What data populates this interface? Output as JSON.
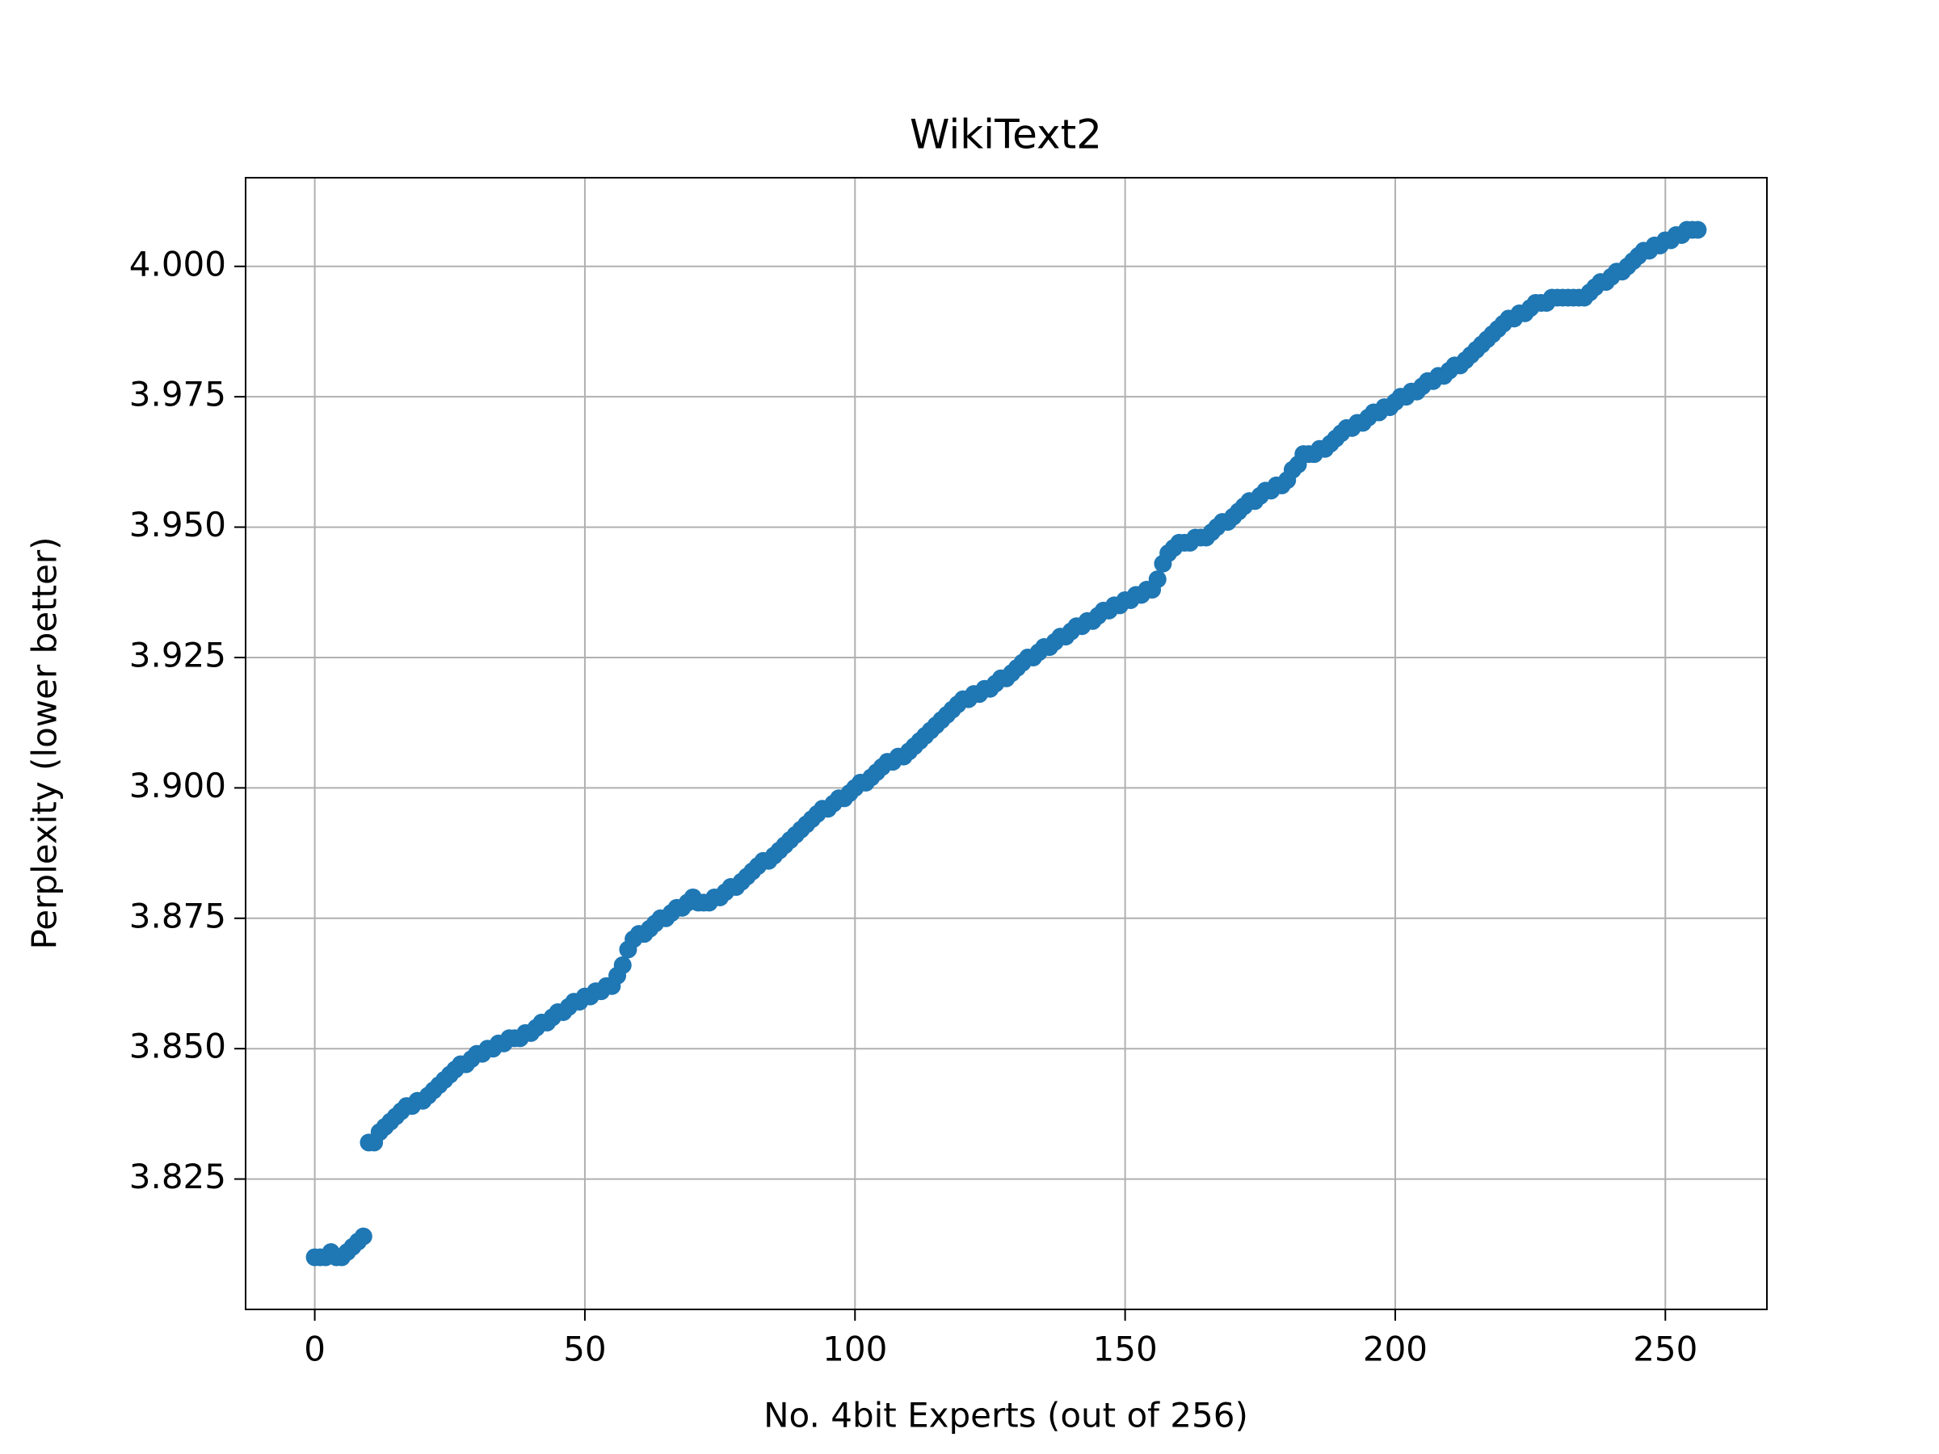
{
  "chart_data": {
    "type": "scatter",
    "title": "WikiText2",
    "x_label": "No. 4bit Experts (out of 256)",
    "y_label": "Perplexity (lower better)",
    "color": "#1f77b4",
    "grid": true,
    "xlim": [
      -12.8,
      268.8
    ],
    "ylim": [
      3.8,
      4.017
    ],
    "xticks": [
      0,
      50,
      100,
      150,
      200,
      250
    ],
    "yticks": [
      3.825,
      {
        "value": 3.85,
        "label": "3.850"
      },
      3.875,
      {
        "value": 3.9,
        "label": "3.900"
      },
      3.925,
      {
        "value": 3.95,
        "label": "3.950"
      },
      3.975,
      {
        "value": 4,
        "label": "4.000"
      }
    ],
    "x": [
      0,
      1,
      2,
      3,
      4,
      5,
      6,
      7,
      8,
      9,
      10,
      11,
      12,
      13,
      14,
      15,
      16,
      17,
      18,
      19,
      20,
      21,
      22,
      23,
      24,
      25,
      26,
      27,
      28,
      29,
      30,
      31,
      32,
      33,
      34,
      35,
      36,
      37,
      38,
      39,
      40,
      41,
      42,
      43,
      44,
      45,
      46,
      47,
      48,
      49,
      50,
      51,
      52,
      53,
      54,
      55,
      56,
      57,
      58,
      59,
      60,
      61,
      62,
      63,
      64,
      65,
      66,
      67,
      68,
      69,
      70,
      71,
      72,
      73,
      74,
      75,
      76,
      77,
      78,
      79,
      80,
      81,
      82,
      83,
      84,
      85,
      86,
      87,
      88,
      89,
      90,
      91,
      92,
      93,
      94,
      95,
      96,
      97,
      98,
      99,
      100,
      101,
      102,
      103,
      104,
      105,
      106,
      107,
      108,
      109,
      110,
      111,
      112,
      113,
      114,
      115,
      116,
      117,
      118,
      119,
      120,
      121,
      122,
      123,
      124,
      125,
      126,
      127,
      128,
      129,
      130,
      131,
      132,
      133,
      134,
      135,
      136,
      137,
      138,
      139,
      140,
      141,
      142,
      143,
      144,
      145,
      146,
      147,
      148,
      149,
      150,
      151,
      152,
      153,
      154,
      155,
      156,
      157,
      158,
      159,
      160,
      161,
      162,
      163,
      164,
      165,
      166,
      167,
      168,
      169,
      170,
      171,
      172,
      173,
      174,
      175,
      176,
      177,
      178,
      179,
      180,
      181,
      182,
      183,
      184,
      185,
      186,
      187,
      188,
      189,
      190,
      191,
      192,
      193,
      194,
      195,
      196,
      197,
      198,
      199,
      200,
      201,
      202,
      203,
      204,
      205,
      206,
      207,
      208,
      209,
      210,
      211,
      212,
      213,
      214,
      215,
      216,
      217,
      218,
      219,
      220,
      221,
      222,
      223,
      224,
      225,
      226,
      227,
      228,
      229,
      230,
      231,
      232,
      233,
      234,
      235,
      236,
      237,
      238,
      239,
      240,
      241,
      242,
      243,
      244,
      245,
      246,
      247,
      248,
      249,
      250,
      251,
      252,
      253,
      254,
      255,
      256
    ],
    "values": [
      3.81,
      3.81,
      3.81,
      3.811,
      3.81,
      3.81,
      3.811,
      3.812,
      3.813,
      3.814,
      3.832,
      3.832,
      3.834,
      3.835,
      3.836,
      3.837,
      3.838,
      3.839,
      3.839,
      3.84,
      3.84,
      3.841,
      3.842,
      3.843,
      3.844,
      3.845,
      3.846,
      3.847,
      3.847,
      3.848,
      3.849,
      3.849,
      3.85,
      3.85,
      3.851,
      3.851,
      3.852,
      3.852,
      3.852,
      3.853,
      3.853,
      3.854,
      3.855,
      3.855,
      3.856,
      3.857,
      3.857,
      3.858,
      3.859,
      3.859,
      3.86,
      3.86,
      3.861,
      3.861,
      3.862,
      3.862,
      3.864,
      3.866,
      3.869,
      3.871,
      3.872,
      3.872,
      3.873,
      3.874,
      3.875,
      3.875,
      3.876,
      3.877,
      3.877,
      3.878,
      3.879,
      3.878,
      3.878,
      3.878,
      3.879,
      3.879,
      3.88,
      3.881,
      3.881,
      3.882,
      3.883,
      3.884,
      3.885,
      3.886,
      3.886,
      3.887,
      3.888,
      3.889,
      3.89,
      3.891,
      3.892,
      3.893,
      3.894,
      3.895,
      3.896,
      3.896,
      3.897,
      3.898,
      3.898,
      3.899,
      3.9,
      3.901,
      3.901,
      3.902,
      3.903,
      3.904,
      3.905,
      3.905,
      3.906,
      3.906,
      3.907,
      3.908,
      3.909,
      3.91,
      3.911,
      3.912,
      3.913,
      3.914,
      3.915,
      3.916,
      3.917,
      3.917,
      3.918,
      3.918,
      3.919,
      3.919,
      3.92,
      3.921,
      3.921,
      3.922,
      3.923,
      3.924,
      3.925,
      3.925,
      3.926,
      3.927,
      3.927,
      3.928,
      3.929,
      3.929,
      3.93,
      3.931,
      3.931,
      3.932,
      3.932,
      3.933,
      3.934,
      3.934,
      3.935,
      3.935,
      3.936,
      3.936,
      3.937,
      3.937,
      3.938,
      3.938,
      3.94,
      3.943,
      3.945,
      3.946,
      3.947,
      3.947,
      3.947,
      3.948,
      3.948,
      3.948,
      3.949,
      3.95,
      3.951,
      3.951,
      3.952,
      3.953,
      3.954,
      3.955,
      3.955,
      3.956,
      3.957,
      3.957,
      3.958,
      3.958,
      3.959,
      3.961,
      3.962,
      3.964,
      3.964,
      3.964,
      3.965,
      3.965,
      3.966,
      3.967,
      3.968,
      3.969,
      3.969,
      3.97,
      3.97,
      3.971,
      3.972,
      3.972,
      3.973,
      3.973,
      3.974,
      3.975,
      3.975,
      3.976,
      3.976,
      3.977,
      3.978,
      3.978,
      3.979,
      3.979,
      3.98,
      3.981,
      3.981,
      3.982,
      3.983,
      3.984,
      3.985,
      3.986,
      3.987,
      3.988,
      3.989,
      3.99,
      3.99,
      3.991,
      3.991,
      3.992,
      3.993,
      3.993,
      3.993,
      3.994,
      3.994,
      3.994,
      3.994,
      3.994,
      3.994,
      3.994,
      3.995,
      3.996,
      3.997,
      3.997,
      3.998,
      3.999,
      3.999,
      4.0,
      4.001,
      4.002,
      4.003,
      4.003,
      4.004,
      4.004,
      4.005,
      4.005,
      4.006,
      4.006,
      4.007,
      4.007,
      4.007
    ]
  }
}
